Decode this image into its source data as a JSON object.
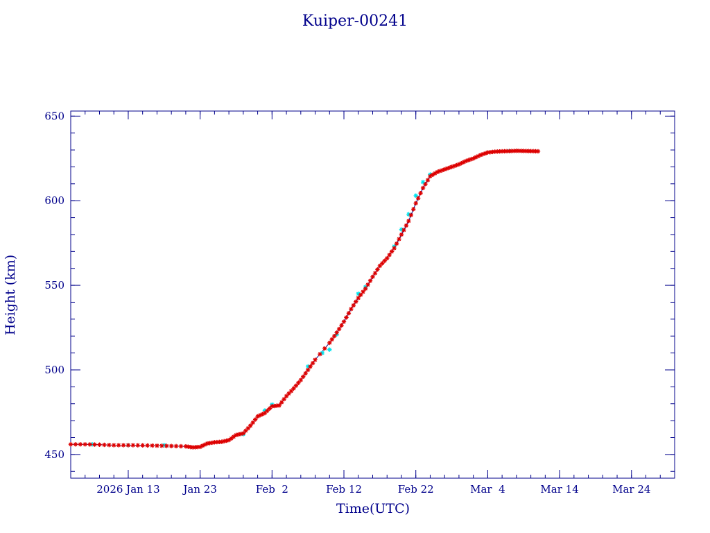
{
  "chart_data": {
    "type": "scatter",
    "title": "Kuiper-00241",
    "xlabel": "Time(UTC)",
    "ylabel": "Height (km)",
    "xlim": [
      "2026-01-05",
      "2026-03-30"
    ],
    "ylim": [
      436,
      653
    ],
    "x_ticks": [
      {
        "date": "2026-01-13",
        "label": "2026 Jan 13"
      },
      {
        "date": "2026-01-23",
        "label": "Jan 23"
      },
      {
        "date": "2026-02-02",
        "label": "Feb  2"
      },
      {
        "date": "2026-02-12",
        "label": "Feb 12"
      },
      {
        "date": "2026-02-22",
        "label": "Feb 22"
      },
      {
        "date": "2026-03-04",
        "label": "Mar  4"
      },
      {
        "date": "2026-03-14",
        "label": "Mar 14"
      },
      {
        "date": "2026-03-24",
        "label": "Mar 24"
      }
    ],
    "y_ticks": [
      450,
      500,
      550,
      600,
      650
    ],
    "grid": false,
    "colors": {
      "axis": "#00008b",
      "series_red": "#dd0000",
      "series_cyan": "#00e5ee",
      "line": "#00008b"
    },
    "series": [
      {
        "marker": "asterisk",
        "color": "#dd0000",
        "points": [
          [
            "2026-01-05",
            456.0
          ],
          [
            "2026-01-07",
            456.0
          ],
          [
            "2026-01-09",
            455.8
          ],
          [
            "2026-01-11",
            455.5
          ],
          [
            "2026-01-13",
            455.5
          ],
          [
            "2026-01-15",
            455.4
          ],
          [
            "2026-01-17",
            455.2
          ],
          [
            "2026-01-19",
            455.0
          ],
          [
            "2026-01-21",
            454.8
          ],
          [
            "2026-01-22",
            454.2
          ],
          [
            "2026-01-23",
            454.5
          ],
          [
            "2026-01-24",
            456.5
          ],
          [
            "2026-01-25",
            457.2
          ],
          [
            "2026-01-26",
            457.5
          ],
          [
            "2026-01-27",
            458.5
          ],
          [
            "2026-01-28",
            461.5
          ],
          [
            "2026-01-29",
            462.5
          ],
          [
            "2026-01-30",
            467.0
          ],
          [
            "2026-01-31",
            472.5
          ],
          [
            "2026-02-01",
            474.5
          ],
          [
            "2026-02-02",
            478.5
          ],
          [
            "2026-02-03",
            479.0
          ],
          [
            "2026-02-04",
            484.5
          ],
          [
            "2026-02-05",
            489.0
          ],
          [
            "2026-02-06",
            494.0
          ],
          [
            "2026-02-07",
            500.0
          ],
          [
            "2026-02-08",
            506.0
          ],
          [
            "2026-02-10",
            516.0
          ],
          [
            "2026-02-11",
            522.0
          ],
          [
            "2026-02-12",
            528.5
          ],
          [
            "2026-02-13",
            536.0
          ],
          [
            "2026-02-14",
            542.5
          ],
          [
            "2026-02-15",
            548.0
          ],
          [
            "2026-02-16",
            555.0
          ],
          [
            "2026-02-17",
            561.5
          ],
          [
            "2026-02-18",
            566.0
          ],
          [
            "2026-02-19",
            572.0
          ],
          [
            "2026-02-20",
            580.0
          ],
          [
            "2026-02-21",
            588.0
          ],
          [
            "2026-02-22",
            598.5
          ],
          [
            "2026-02-23",
            607.5
          ],
          [
            "2026-02-24",
            614.5
          ],
          [
            "2026-02-25",
            617.0
          ],
          [
            "2026-02-26",
            618.5
          ],
          [
            "2026-02-27",
            620.0
          ],
          [
            "2026-02-28",
            621.5
          ],
          [
            "2026-03-01",
            623.5
          ],
          [
            "2026-03-02",
            625.0
          ],
          [
            "2026-03-03",
            627.0
          ],
          [
            "2026-03-04",
            628.5
          ],
          [
            "2026-03-05",
            629.0
          ],
          [
            "2026-03-06",
            629.2
          ],
          [
            "2026-03-07",
            629.3
          ],
          [
            "2026-03-08",
            629.5
          ],
          [
            "2026-03-09",
            629.4
          ],
          [
            "2026-03-10",
            629.3
          ],
          [
            "2026-03-11",
            629.2
          ]
        ]
      },
      {
        "marker": "asterisk",
        "color": "#00e5ee",
        "points": [
          [
            "2026-01-08",
            456.0
          ],
          [
            "2026-01-13",
            455.5
          ],
          [
            "2026-01-18",
            455.5
          ],
          [
            "2026-01-29",
            462.0
          ],
          [
            "2026-02-01",
            476.0
          ],
          [
            "2026-02-02",
            479.5
          ],
          [
            "2026-02-07",
            502.0
          ],
          [
            "2026-02-09",
            510.0
          ],
          [
            "2026-02-10",
            512.0
          ],
          [
            "2026-02-11",
            521.0
          ],
          [
            "2026-02-14",
            545.0
          ],
          [
            "2026-02-15",
            549.0
          ],
          [
            "2026-02-19",
            573.0
          ],
          [
            "2026-02-20",
            583.0
          ],
          [
            "2026-02-21",
            592.0
          ],
          [
            "2026-02-22",
            603.0
          ],
          [
            "2026-02-23",
            611.0
          ],
          [
            "2026-02-24",
            615.5
          ],
          [
            "2026-03-07",
            629.4
          ]
        ]
      }
    ]
  }
}
